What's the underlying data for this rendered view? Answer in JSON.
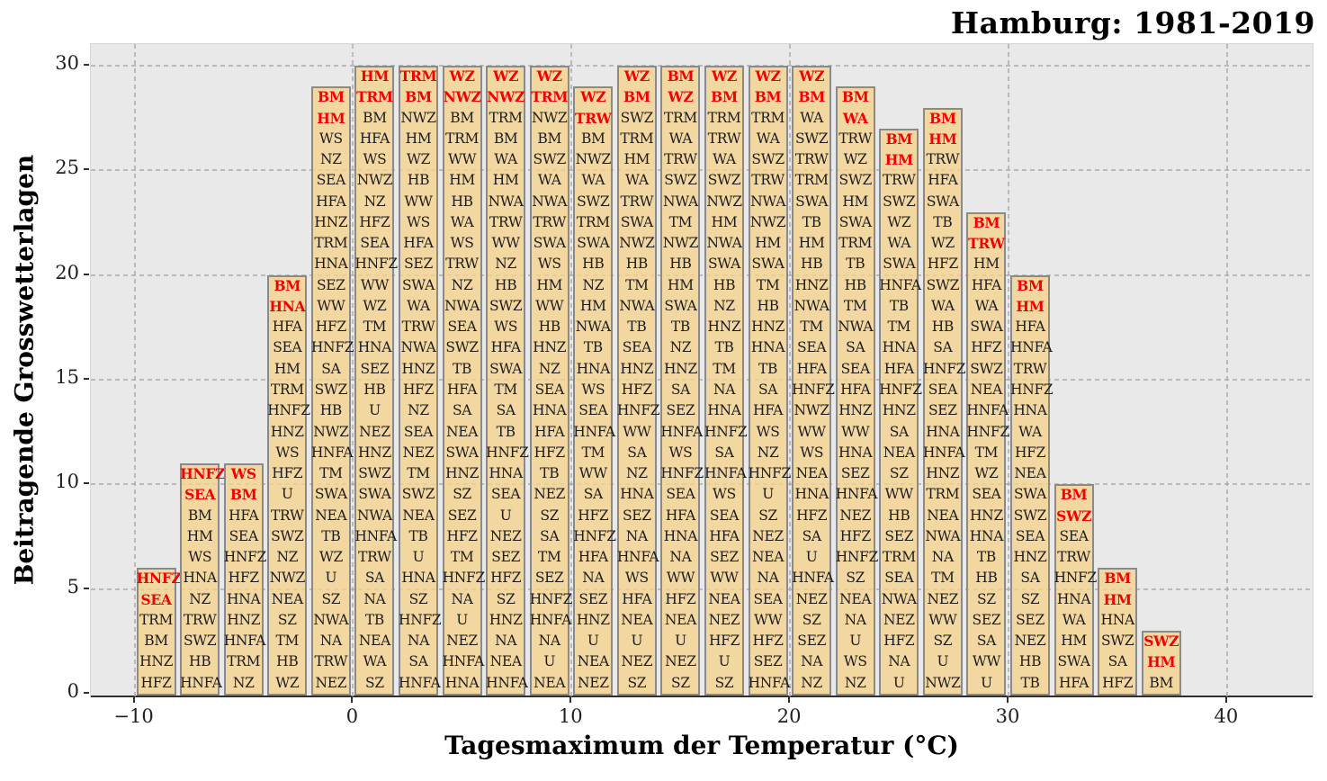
{
  "chart_data": {
    "type": "bar",
    "title": "Hamburg: 1981-2019",
    "xlabel": "Tagesmaximum der Temperatur (°C)",
    "ylabel": "Beitragende Grosswetterlagen",
    "xlim": [
      -12,
      44
    ],
    "ylim": [
      0,
      31.25
    ],
    "grid": "dashed",
    "legend": "none",
    "bin_width": 2,
    "red_labels_per_bar": 2,
    "x_ticks": [
      {
        "value": -10,
        "label": "−10"
      },
      {
        "value": 0,
        "label": "0"
      },
      {
        "value": 10,
        "label": "10"
      },
      {
        "value": 20,
        "label": "20"
      },
      {
        "value": 30,
        "label": "30"
      },
      {
        "value": 40,
        "label": "40"
      }
    ],
    "y_ticks": [
      0,
      5,
      10,
      15,
      20,
      25,
      30
    ],
    "colors": {
      "bar_fill": "#f2d7a2",
      "bar_edge": "#8a8a8a",
      "label_black": "#1b1b1b",
      "label_red": "#f40000",
      "plot_bg": "#e9e9e9",
      "grid": "#ababab",
      "figure_bg": "#ffffff"
    },
    "bars": [
      {
        "bin_start": -10,
        "count": 6,
        "labels": [
          "HNFZ",
          "SEA",
          "TRM",
          "BM",
          "HNZ",
          "HFZ"
        ]
      },
      {
        "bin_start": -8,
        "count": 11,
        "labels": [
          "HNFZ",
          "SEA",
          "BM",
          "HM",
          "WS",
          "HNA",
          "NZ",
          "TRW",
          "SWZ",
          "HB",
          "HNFA"
        ]
      },
      {
        "bin_start": -6,
        "count": 11,
        "labels": [
          "WS",
          "BM",
          "HFA",
          "SEA",
          "HNFZ",
          "HFZ",
          "HNA",
          "HNZ",
          "HNFA",
          "TRM",
          "NZ"
        ]
      },
      {
        "bin_start": -4,
        "count": 20,
        "labels": [
          "BM",
          "HNA",
          "HFA",
          "SEA",
          "HM",
          "TRM",
          "HNFZ",
          "HNZ",
          "WS",
          "HFZ",
          "U",
          "TRW",
          "SWZ",
          "NZ",
          "NWZ",
          "NEA",
          "SZ",
          "TM",
          "HB",
          "WZ"
        ]
      },
      {
        "bin_start": -2,
        "count": 29,
        "labels": [
          "BM",
          "HM",
          "WS",
          "NZ",
          "SEA",
          "HFA",
          "HNZ",
          "TRM",
          "HNA",
          "SEZ",
          "WW",
          "HFZ",
          "HNFZ",
          "SA",
          "SWZ",
          "HB",
          "NWZ",
          "HNFA",
          "TM",
          "SWA",
          "NEA",
          "TB",
          "WZ",
          "U",
          "SZ",
          "NWA",
          "NA",
          "TRW",
          "NEZ"
        ]
      },
      {
        "bin_start": 0,
        "count": 30,
        "labels": [
          "HM",
          "TRM",
          "BM",
          "HFA",
          "WS",
          "NWZ",
          "NZ",
          "HFZ",
          "SEA",
          "HNFZ",
          "WW",
          "WZ",
          "TM",
          "HNA",
          "SEZ",
          "HB",
          "U",
          "NEZ",
          "HNZ",
          "SWZ",
          "SWA",
          "NWA",
          "HNFA",
          "TRW",
          "SA",
          "NA",
          "TB",
          "NEA",
          "WA",
          "SZ"
        ]
      },
      {
        "bin_start": 2,
        "count": 30,
        "labels": [
          "TRM",
          "BM",
          "NWZ",
          "HM",
          "WZ",
          "HB",
          "WW",
          "WS",
          "HFA",
          "SEZ",
          "SWA",
          "WA",
          "TRW",
          "NWA",
          "HNZ",
          "HFZ",
          "NZ",
          "SEA",
          "NEZ",
          "TM",
          "SWZ",
          "NEA",
          "TB",
          "U",
          "HNA",
          "SZ",
          "HNFZ",
          "NA",
          "SA",
          "HNFA"
        ]
      },
      {
        "bin_start": 4,
        "count": 30,
        "labels": [
          "WZ",
          "NWZ",
          "BM",
          "TRM",
          "WW",
          "HM",
          "HB",
          "WA",
          "WS",
          "TRW",
          "NZ",
          "NWA",
          "SEA",
          "SWZ",
          "TB",
          "HFA",
          "SA",
          "NEA",
          "SWA",
          "HNZ",
          "SZ",
          "SEZ",
          "HFZ",
          "TM",
          "HNFZ",
          "NA",
          "U",
          "NEZ",
          "HNFA",
          "HNA"
        ]
      },
      {
        "bin_start": 6,
        "count": 30,
        "labels": [
          "WZ",
          "NWZ",
          "TRM",
          "BM",
          "WA",
          "HM",
          "NWA",
          "TRW",
          "WW",
          "NZ",
          "HB",
          "SWZ",
          "WS",
          "HFA",
          "SWA",
          "TM",
          "SA",
          "TB",
          "HNFZ",
          "HNA",
          "SEA",
          "U",
          "NEZ",
          "SEZ",
          "HFZ",
          "SZ",
          "HNZ",
          "NA",
          "NEA",
          "HNFA"
        ]
      },
      {
        "bin_start": 8,
        "count": 30,
        "labels": [
          "WZ",
          "TRM",
          "NWZ",
          "BM",
          "SWZ",
          "WA",
          "NWA",
          "TRW",
          "SWA",
          "WS",
          "HM",
          "WW",
          "HB",
          "HNZ",
          "NZ",
          "SEA",
          "HNA",
          "HFA",
          "HFZ",
          "TB",
          "NEZ",
          "SZ",
          "SA",
          "TM",
          "SEZ",
          "HNFZ",
          "HNFA",
          "NA",
          "U",
          "NEA"
        ]
      },
      {
        "bin_start": 10,
        "count": 29,
        "labels": [
          "WZ",
          "TRW",
          "BM",
          "NWZ",
          "WA",
          "SWZ",
          "TRM",
          "SWA",
          "HB",
          "NZ",
          "HM",
          "NWA",
          "TB",
          "HNA",
          "WS",
          "SEA",
          "HNFA",
          "TM",
          "WW",
          "SA",
          "HFZ",
          "HNFZ",
          "HFA",
          "NA",
          "SEZ",
          "HNZ",
          "U",
          "NEA",
          "NEZ"
        ]
      },
      {
        "bin_start": 12,
        "count": 30,
        "labels": [
          "WZ",
          "BM",
          "SWZ",
          "TRM",
          "HM",
          "WA",
          "TRW",
          "SWA",
          "NWZ",
          "HB",
          "TM",
          "NWA",
          "TB",
          "SEA",
          "HNZ",
          "HFZ",
          "HNFZ",
          "WW",
          "SA",
          "NZ",
          "HNA",
          "SEZ",
          "NA",
          "HNFA",
          "WS",
          "HFA",
          "NEA",
          "U",
          "NEZ",
          "SZ"
        ]
      },
      {
        "bin_start": 14,
        "count": 30,
        "labels": [
          "BM",
          "WZ",
          "TRM",
          "WA",
          "TRW",
          "SWZ",
          "NWA",
          "TM",
          "NWZ",
          "HB",
          "HM",
          "SWA",
          "TB",
          "NZ",
          "HNZ",
          "SA",
          "SEZ",
          "HNFA",
          "WS",
          "HNFZ",
          "SEA",
          "HFA",
          "HNA",
          "NA",
          "WW",
          "HFZ",
          "NEA",
          "U",
          "NEZ",
          "SZ"
        ]
      },
      {
        "bin_start": 16,
        "count": 30,
        "labels": [
          "WZ",
          "BM",
          "TRM",
          "TRW",
          "WA",
          "SWZ",
          "NWZ",
          "HM",
          "NWA",
          "SWA",
          "HB",
          "NZ",
          "HNZ",
          "TB",
          "TM",
          "NA",
          "HNA",
          "HNFZ",
          "SA",
          "HNFA",
          "WS",
          "SEA",
          "HFA",
          "SEZ",
          "WW",
          "NEA",
          "NEZ",
          "HFZ",
          "U",
          "SZ"
        ]
      },
      {
        "bin_start": 18,
        "count": 30,
        "labels": [
          "WZ",
          "BM",
          "TRM",
          "WA",
          "SWZ",
          "TRW",
          "NWA",
          "NWZ",
          "HM",
          "SWA",
          "TM",
          "HB",
          "HNZ",
          "HNA",
          "TB",
          "SA",
          "HFA",
          "WS",
          "NZ",
          "HNFZ",
          "U",
          "SZ",
          "NEZ",
          "NEA",
          "NA",
          "SEA",
          "WW",
          "HFZ",
          "SEZ",
          "HNFA"
        ]
      },
      {
        "bin_start": 20,
        "count": 30,
        "labels": [
          "WZ",
          "BM",
          "WA",
          "SWZ",
          "TRW",
          "TRM",
          "SWA",
          "TB",
          "HM",
          "HB",
          "HNZ",
          "NWA",
          "TM",
          "SEA",
          "HFA",
          "HNFZ",
          "NWZ",
          "WW",
          "WS",
          "NEA",
          "HNA",
          "HFZ",
          "SA",
          "U",
          "HNFA",
          "NEZ",
          "SZ",
          "SEZ",
          "NA",
          "NZ"
        ]
      },
      {
        "bin_start": 22,
        "count": 29,
        "labels": [
          "BM",
          "WA",
          "TRW",
          "WZ",
          "SWZ",
          "HM",
          "SWA",
          "TRM",
          "TB",
          "HB",
          "TM",
          "NWA",
          "SA",
          "SEA",
          "HFA",
          "HNZ",
          "WW",
          "HNA",
          "SEZ",
          "HNFA",
          "NEZ",
          "HFZ",
          "HNFZ",
          "SZ",
          "NEA",
          "NA",
          "U",
          "WS",
          "NZ"
        ]
      },
      {
        "bin_start": 24,
        "count": 27,
        "labels": [
          "BM",
          "HM",
          "TRW",
          "SWZ",
          "WZ",
          "WA",
          "SWA",
          "HNFA",
          "TB",
          "TM",
          "HNA",
          "HFA",
          "HNFZ",
          "HNZ",
          "SA",
          "NEA",
          "SZ",
          "WW",
          "HB",
          "SEZ",
          "TRM",
          "SEA",
          "NWA",
          "NEZ",
          "HFZ",
          "NA",
          "U"
        ]
      },
      {
        "bin_start": 26,
        "count": 28,
        "labels": [
          "BM",
          "HM",
          "TRW",
          "HFA",
          "SWA",
          "TB",
          "WZ",
          "HFZ",
          "SWZ",
          "WA",
          "HB",
          "SA",
          "HNFZ",
          "SEA",
          "SEZ",
          "HNA",
          "HNFA",
          "HNZ",
          "TRM",
          "NEA",
          "NWA",
          "NA",
          "TM",
          "NEZ",
          "WW",
          "SZ",
          "U",
          "NWZ"
        ]
      },
      {
        "bin_start": 28,
        "count": 23,
        "labels": [
          "BM",
          "TRW",
          "HM",
          "HFA",
          "WA",
          "SWA",
          "HFZ",
          "SWZ",
          "NEA",
          "HNFA",
          "HNFZ",
          "TM",
          "WZ",
          "SEA",
          "HNZ",
          "HNA",
          "TB",
          "HB",
          "SZ",
          "SEZ",
          "SA",
          "WW",
          "U"
        ]
      },
      {
        "bin_start": 30,
        "count": 20,
        "labels": [
          "BM",
          "HM",
          "HFA",
          "HNFA",
          "TRW",
          "HNFZ",
          "HNA",
          "WA",
          "HFZ",
          "NEA",
          "SWA",
          "SWZ",
          "SEA",
          "HNZ",
          "SA",
          "SZ",
          "SEZ",
          "NEZ",
          "HB",
          "TB"
        ]
      },
      {
        "bin_start": 32,
        "count": 10,
        "labels": [
          "BM",
          "SWZ",
          "SEA",
          "TRW",
          "HNFZ",
          "HNA",
          "WA",
          "HM",
          "SWA",
          "HFA"
        ]
      },
      {
        "bin_start": 34,
        "count": 6,
        "labels": [
          "BM",
          "HM",
          "HNA",
          "SWZ",
          "SA",
          "HFZ"
        ]
      },
      {
        "bin_start": 36,
        "count": 3,
        "labels": [
          "SWZ",
          "HM",
          "BM"
        ]
      }
    ]
  }
}
